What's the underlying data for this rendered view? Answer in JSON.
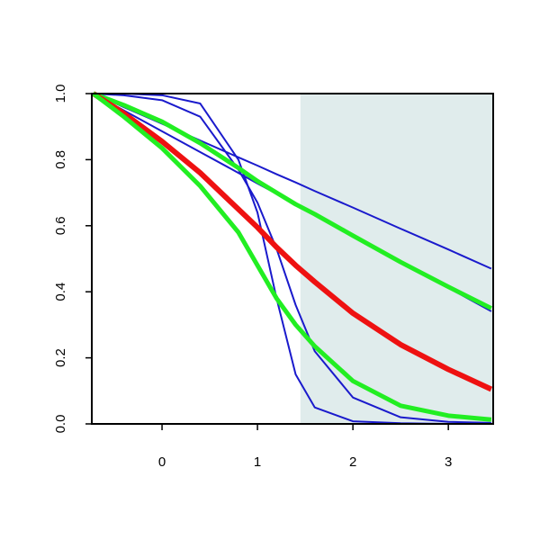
{
  "chart_data": {
    "type": "line",
    "x": [
      -0.72,
      -0.4,
      0,
      0.4,
      0.8,
      1.0,
      1.2,
      1.4,
      1.6,
      2.0,
      2.5,
      3.0,
      3.45
    ],
    "series": [
      {
        "color": "#1a1acc",
        "width": 2,
        "values": [
          1,
          0.959,
          0.909,
          0.858,
          0.807,
          0.782,
          0.756,
          0.731,
          0.705,
          0.655,
          0.591,
          0.528,
          0.47
        ]
      },
      {
        "color": "#1a1acc",
        "width": 2,
        "values": [
          1,
          0.949,
          0.886,
          0.823,
          0.76,
          0.728,
          0.697,
          0.665,
          0.634,
          0.57,
          0.491,
          0.412,
          0.341
        ]
      },
      {
        "color": "#1a1acc",
        "width": 2,
        "values": [
          1,
          1,
          0.995,
          0.97,
          0.8,
          0.64,
          0.38,
          0.15,
          0.05,
          0.008,
          0.002,
          0,
          0
        ]
      },
      {
        "color": "#1a1acc",
        "width": 2,
        "values": [
          1,
          0.995,
          0.98,
          0.93,
          0.77,
          0.67,
          0.53,
          0.36,
          0.22,
          0.08,
          0.02,
          0.006,
          0.003
        ]
      },
      {
        "color": "#22ee22",
        "width": 5,
        "values": [
          1,
          0.965,
          0.915,
          0.85,
          0.775,
          0.735,
          0.7,
          0.665,
          0.635,
          0.57,
          0.49,
          0.415,
          0.35
        ]
      },
      {
        "color": "#ee1111",
        "width": 6,
        "values": [
          1,
          0.94,
          0.855,
          0.76,
          0.65,
          0.595,
          0.535,
          0.48,
          0.43,
          0.335,
          0.24,
          0.165,
          0.105
        ]
      },
      {
        "color": "#22ee22",
        "width": 5,
        "values": [
          1,
          0.93,
          0.835,
          0.72,
          0.58,
          0.48,
          0.38,
          0.3,
          0.235,
          0.13,
          0.055,
          0.025,
          0.013
        ]
      }
    ],
    "shaded_from": 1.45,
    "shade_color": "#e0ecec",
    "xlim": [
      -0.736,
      3.47
    ],
    "ylim": [
      0,
      1
    ],
    "xticks": [
      0,
      1,
      2,
      3
    ],
    "yticks": [
      {
        "value": 0,
        "label": "0.0"
      },
      0.2,
      0.4,
      0.6,
      0.8,
      {
        "value": 1,
        "label": "1.0"
      }
    ]
  }
}
